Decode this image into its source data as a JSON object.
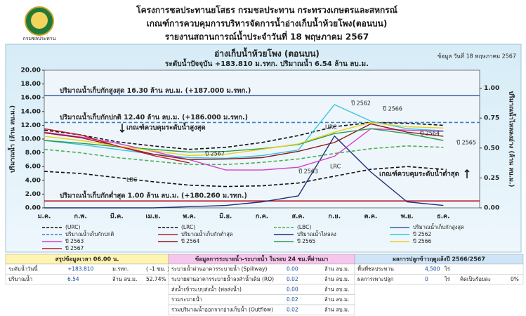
{
  "header": {
    "logo_text": "กรมชลประทาน",
    "lines": [
      "โครงการชลประทานยโสธร กรมชลประทาน กระทรวงเกษตรและสหกรณ์",
      "เกณฑ์การควบคุมการบริหารจัดการน้ำอ่างเก็บน้ำห้วยโพง(ตอนบน)",
      "รายงานสถานการณ์น้ำประจำวันที่ 18 พฤษภาคม 2567"
    ]
  },
  "chart_data": {
    "type": "line",
    "title": "อ่างเก็บน้ำห้วยโพง (ตอนบน)",
    "subtitle": "ระดับน้ำปัจจุบัน +183.810 ม.รทก. ปริมาณน้ำ 6.54 ล้าน ลบ.ม.",
    "date_note": "ข้อมูล วันที่ 18 พฤษภาคม 2567",
    "ylabel": "ปริมาณน้ำ (ล้าน ลบ.ม.)",
    "y2label": "ปริมาณน้ำไหลลงอ่าง (ล้าน ลบ.ม.)",
    "categories": [
      "ม.ค.",
      "ก.พ.",
      "มี.ค.",
      "เม.ย.",
      "พ.ค.",
      "มิ.ย.",
      "ก.ค.",
      "ส.ค.",
      "ก.ย.",
      "ต.ค.",
      "พ.ย.",
      "ธ.ค."
    ],
    "ylim": [
      0,
      20
    ],
    "yticks": [
      {
        "value": 0,
        "label": "0.00"
      },
      {
        "value": 2,
        "label": "2.00"
      },
      {
        "value": 4,
        "label": "4.00"
      },
      {
        "value": 6,
        "label": "6.00"
      },
      {
        "value": 8,
        "label": "8.00"
      },
      {
        "value": 10,
        "label": "10.00"
      },
      {
        "value": 12,
        "label": "12.00"
      },
      {
        "value": 14,
        "label": "14.00"
      },
      {
        "value": 16,
        "label": "16.00"
      },
      {
        "value": 18,
        "label": "18.00"
      },
      {
        "value": 20,
        "label": "20.00"
      }
    ],
    "y2lim": [
      0,
      1.15
    ],
    "y2ticks": [
      {
        "value": 0,
        "label": "0.00"
      },
      {
        "value": 0.25,
        "label": "0.25"
      },
      {
        "value": 0.5,
        "label": "0.50"
      },
      {
        "value": 0.75,
        "label": "0.75"
      },
      {
        "value": 1,
        "label": "1.00"
      }
    ],
    "reference_lines": [
      {
        "name": "ปริมาณน้ำเก็บกักสูงสุด",
        "label": "ปริมาณน้ำเก็บกักสูงสุด 16.30 ล้าน ลบ.ม. (+187.000 ม.รทก.)",
        "value": 16.3,
        "color": "#3a5fa8",
        "dash": false
      },
      {
        "name": "ปริมาณน้ำเก็บกักปกติ",
        "label": "ปริมาณน้ำเก็บกักปกติ 12.40 ล้าน ลบ.ม. (+186.000 ม.รทก.)",
        "value": 12.4,
        "color": "#3a7fc8",
        "dash": true
      },
      {
        "name": "ปริมาณน้ำเก็บกักต่ำสุด",
        "label": "ปริมาณน้ำเก็บกักต่ำสุด 1.00 ล้าน ลบ.ม. (+180.260 ม.รทก.)",
        "value": 1.0,
        "color": "#c0182a",
        "dash": false
      }
    ],
    "series": [
      {
        "name": "(URC)",
        "color": "#111111",
        "dash": true,
        "values": [
          11.3,
          10.6,
          9.6,
          9.0,
          8.5,
          8.8,
          9.5,
          10.5,
          11.8,
          12.4,
          12.3,
          12.0
        ]
      },
      {
        "name": "(LRC)",
        "color": "#111111",
        "dash": true,
        "values": [
          5.3,
          5.0,
          4.4,
          3.8,
          3.3,
          3.1,
          3.2,
          3.6,
          4.6,
          5.6,
          6.0,
          5.6
        ]
      },
      {
        "name": "(LBC)",
        "color": "#4caf50",
        "dash": true,
        "values": [
          8.5,
          8.0,
          7.3,
          6.8,
          6.3,
          6.3,
          6.6,
          7.1,
          7.9,
          8.6,
          9.0,
          8.8
        ]
      },
      {
        "name": "ปริมาณน้ำไหลลง",
        "color": "#1f2f7a",
        "dash": false,
        "axis": "y2",
        "values": [
          0,
          0,
          0,
          0,
          0.01,
          0.02,
          0.05,
          0.1,
          0.6,
          0.3,
          0.05,
          0.02
        ]
      },
      {
        "name": "ปี 2562",
        "color": "#35c6e0",
        "dash": false,
        "values": [
          9.8,
          9.2,
          8.5,
          7.8,
          7.3,
          7.2,
          7.6,
          8.4,
          15.0,
          12.6,
          11.5,
          11.2
        ]
      },
      {
        "name": "ปี 2563",
        "color": "#d63fc8",
        "dash": false,
        "values": [
          11.0,
          10.3,
          9.4,
          8.2,
          7.0,
          5.5,
          5.5,
          5.9,
          7.5,
          11.5,
          11.3,
          11.1
        ]
      },
      {
        "name": "ปี 2564",
        "color": "#8b1a1a",
        "dash": false,
        "values": [
          10.9,
          10.2,
          9.0,
          7.8,
          7.0,
          7.1,
          7.3,
          8.2,
          9.5,
          12.2,
          11.0,
          10.4
        ]
      },
      {
        "name": "ปี 2565",
        "color": "#2e9a4a",
        "dash": false,
        "values": [
          9.8,
          9.4,
          8.9,
          8.5,
          8.1,
          8.2,
          8.6,
          9.2,
          10.8,
          11.5,
          10.8,
          9.8
        ]
      },
      {
        "name": "ปี 2566",
        "color": "#e8d020",
        "dash": false,
        "values": [
          10.4,
          9.8,
          9.0,
          8.3,
          7.6,
          7.8,
          8.5,
          9.3,
          11.0,
          12.4,
          11.8,
          11.6
        ]
      },
      {
        "name": "ปี 2567",
        "color": "#c0182a",
        "dash": false,
        "values": [
          11.5,
          10.6,
          9.0,
          7.6,
          6.54,
          null,
          null,
          null,
          null,
          null,
          null,
          null
        ]
      }
    ],
    "annotations": [
      "URC",
      "LRC",
      "LBC",
      "ปี 2567",
      "ปี 2563",
      "ปี 2562",
      "ปี 2566",
      "ปี 2564",
      "ปี 2565",
      "เกณฑ์ควบคุมระดับน้ำสูงสุด",
      "เกณฑ์ควบคุมระดับน้ำต่ำสุด"
    ]
  },
  "tables": [
    {
      "title": "สรุปข้อมูลเวลา 06.00 น.",
      "rows": [
        [
          "ระดับน้ำวันนี้",
          "+183.810",
          "ม.รทก.",
          "( -1 ซม. )"
        ],
        [
          "ปริมาณน้ำ",
          "6.54",
          "ล้าน ลบ.ม.",
          "52.74%"
        ]
      ]
    },
    {
      "title": "ข้อมูลการระบายน้ำ-ระบายน้ำ ในรอบ 24 ชม.ที่ผ่านมา",
      "rows": [
        [
          "ระบายน้ำผ่านอาคารระบายน้ำ (Spillway)",
          "0.00",
          "ล้าน ลบ.ม."
        ],
        [
          "ระบายผ่านอาคารระบายน้ำลงลำน้ำเดิม (RO)",
          "0.02",
          "ล้าน ลบ.ม."
        ],
        [
          "ส่งน้ำเข้าระบบส่งน้ำ (ท่อส่งน้ำ)",
          "0.00",
          "ล้าน ลบ.ม."
        ],
        [
          "รวมระบายน้ำ",
          "0.02",
          "ล้าน ลบ.ม."
        ],
        [
          "รวมปริมาณน้ำออกจากอ่างเก็บน้ำ (Outflow)",
          "0.02",
          "ล้าน ลบ.ม."
        ]
      ]
    },
    {
      "title": "ผลการปลูกข้าวฤดูแล้งปี 2566/2567",
      "rows": [
        [
          "พื้นที่ชลประทาน",
          "4,500",
          "ไร่"
        ],
        [
          "ผลการเพาะปลูก",
          "0",
          "ไร่",
          "คิดเป็นร้อยละ",
          "0%"
        ]
      ]
    }
  ]
}
